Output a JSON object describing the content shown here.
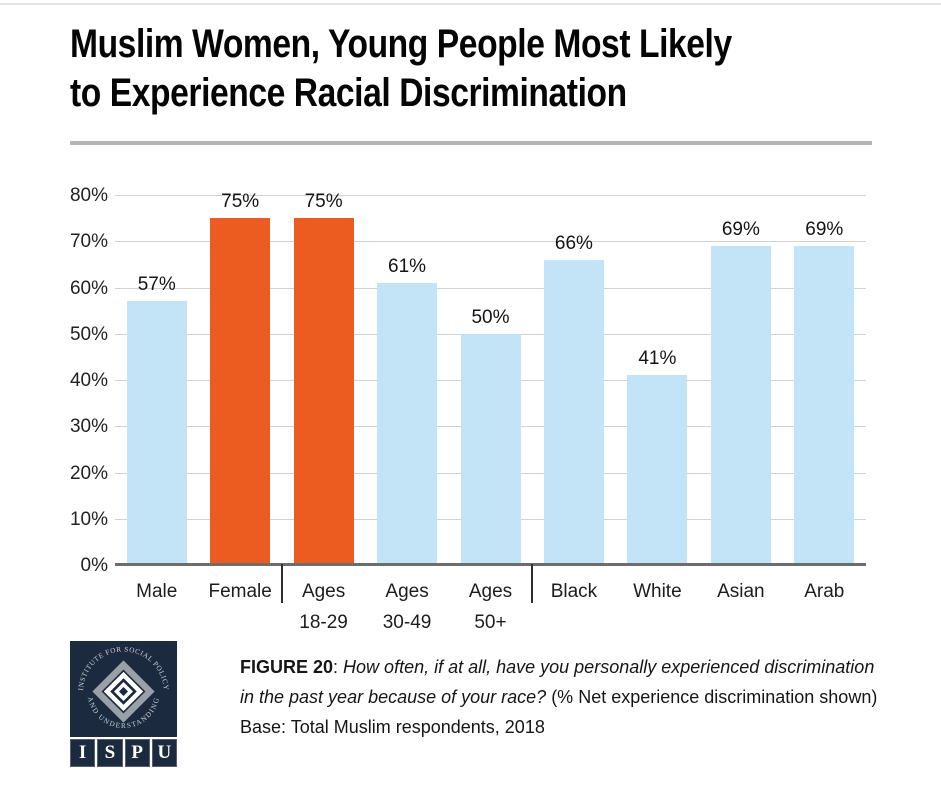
{
  "page": {
    "title_line1": "Muslim Women, Young People Most Likely",
    "title_line2": "to Experience Racial Discrimination"
  },
  "chart_data": {
    "type": "bar",
    "title": "Muslim Women, Young People Most Likely to Experience Racial Discrimination",
    "categories": [
      "Male",
      "Female",
      "Ages 18-29",
      "Ages 30-49",
      "Ages 50+",
      "Black",
      "White",
      "Asian",
      "Arab"
    ],
    "category_lines": [
      [
        "Male"
      ],
      [
        "Female"
      ],
      [
        "Ages",
        "18-29"
      ],
      [
        "Ages",
        "30-49"
      ],
      [
        "Ages",
        "50+"
      ],
      [
        "Black"
      ],
      [
        "White"
      ],
      [
        "Asian"
      ],
      [
        "Arab"
      ]
    ],
    "values": [
      57,
      75,
      75,
      61,
      50,
      66,
      41,
      69,
      69
    ],
    "value_labels": [
      "57%",
      "75%",
      "75%",
      "61%",
      "50%",
      "66%",
      "41%",
      "69%",
      "69%"
    ],
    "highlight_indices": [
      1,
      2
    ],
    "group_divider_after": [
      1,
      4
    ],
    "y_ticks": [
      "0%",
      "10%",
      "20%",
      "30%",
      "40%",
      "50%",
      "60%",
      "70%",
      "80%"
    ],
    "ylim": [
      0,
      80
    ],
    "grid": true,
    "legend": false,
    "xlabel": "",
    "ylabel": "",
    "bar_color_default": "#c2e4f6",
    "bar_color_highlight": "#ec5c21",
    "gridline_color": "#d2d2d2"
  },
  "footer": {
    "logo": {
      "arc_top": "INSTITUTE FOR SOCIAL POLICY",
      "arc_bottom": "AND UNDERSTANDING",
      "letters": [
        "I",
        "S",
        "P",
        "U"
      ],
      "bg_color": "#1c2a40"
    },
    "caption": {
      "figure_label": "FIGURE 20",
      "separator": ": ",
      "question": "How often, if at all, have you personally experienced discrimination in the past year because of your race?",
      "note": " (% Net experience discrimination shown) Base: Total Muslim respondents, 2018"
    }
  }
}
